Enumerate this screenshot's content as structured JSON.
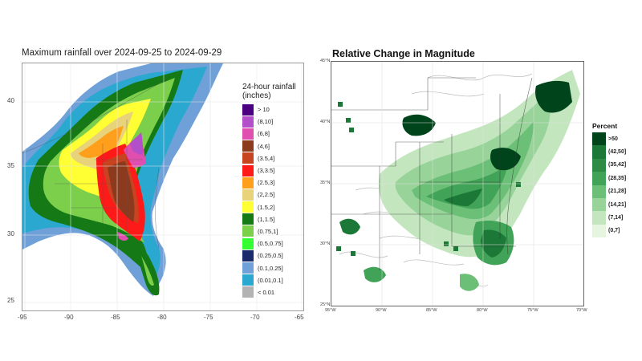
{
  "left_panel": {
    "title": "Maximum rainfall over 2024-09-25 to 2024-09-29",
    "y_ticks": [
      "40",
      "35",
      "30",
      "25"
    ],
    "x_ticks": [
      "-95",
      "-90",
      "-85",
      "-80",
      "-75",
      "-70",
      "-65"
    ],
    "legend": {
      "title_line1": "24-hour rainfall",
      "title_line2": "(inches)",
      "items": [
        {
          "label": "> 10",
          "color": "#4b0082"
        },
        {
          "label": "(8,10]",
          "color": "#b34fc8"
        },
        {
          "label": "(6,8]",
          "color": "#e04fb0"
        },
        {
          "label": "(4,6]",
          "color": "#8b3a1e"
        },
        {
          "label": "(3.5,4]",
          "color": "#c8431f"
        },
        {
          "label": "(3,3.5]",
          "color": "#ff1a1a"
        },
        {
          "label": "(2.5,3]",
          "color": "#ff9f1c"
        },
        {
          "label": "(2,2.5]",
          "color": "#e8d27a"
        },
        {
          "label": "(1.5,2]",
          "color": "#ffff33"
        },
        {
          "label": "(1,1.5]",
          "color": "#157a15"
        },
        {
          "label": "(0.75,1]",
          "color": "#7ccf4a"
        },
        {
          "label": "(0.5,0.75]",
          "color": "#33ff33"
        },
        {
          "label": "(0.25,0.5]",
          "color": "#1b2a6b"
        },
        {
          "label": "(0.1,0.25]",
          "color": "#6fa0d8"
        },
        {
          "label": "(0.01,0.1]",
          "color": "#2aa8d0"
        },
        {
          "label": "< 0.01",
          "color": "#b3b3b3"
        }
      ]
    }
  },
  "right_panel": {
    "title": "Relative Change in Magnitude",
    "y_ticks": [
      "45°N",
      "40°N",
      "35°N",
      "30°N",
      "25°N"
    ],
    "x_ticks": [
      "95°W",
      "90°W",
      "85°W",
      "80°W",
      "75°W",
      "70°W"
    ],
    "legend": {
      "title": "Percent",
      "items": [
        {
          "label": ">50",
          "color": "#00441b"
        },
        {
          "label": "(42,50]",
          "color": "#1b7837"
        },
        {
          "label": "(35,42]",
          "color": "#2e8b46"
        },
        {
          "label": "(28,35]",
          "color": "#41a357"
        },
        {
          "label": "(21,28]",
          "color": "#6cbf76"
        },
        {
          "label": "(14,21]",
          "color": "#98d49a"
        },
        {
          "label": "(7,14]",
          "color": "#c4e6bf"
        },
        {
          "label": "(0,7]",
          "color": "#e5f5e0"
        }
      ]
    }
  }
}
